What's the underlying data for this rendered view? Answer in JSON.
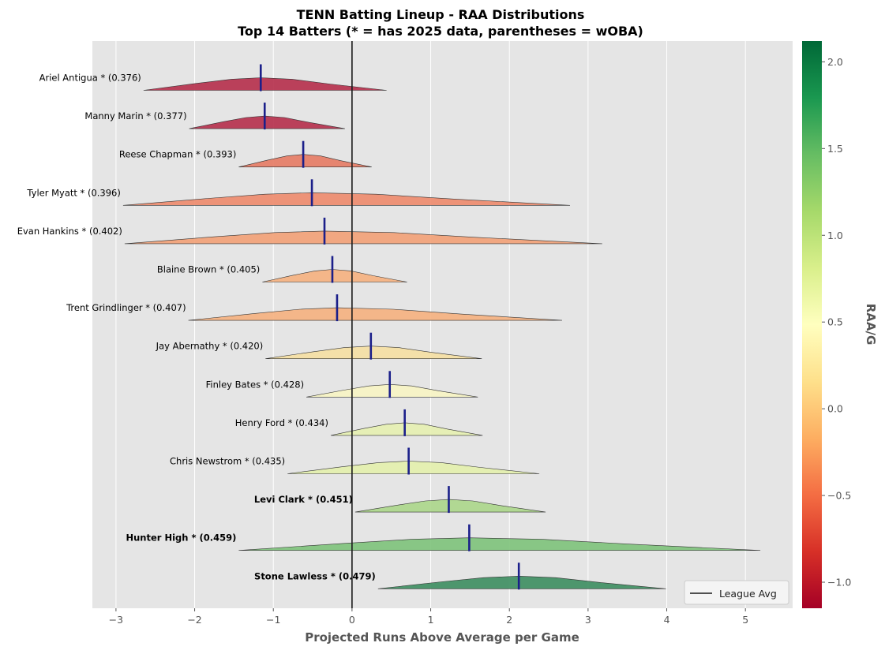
{
  "chart_data": {
    "type": "violin",
    "title": "TENN Batting Lineup - RAA Distributions",
    "subtitle": "Top 14 Batters (* = has 2025 data, parentheses = wOBA)",
    "xlabel": "Projected Runs Above Average per Game",
    "xlim": [
      -3.3,
      5.6
    ],
    "xticks": [
      -3,
      -2,
      -1,
      0,
      1,
      2,
      3,
      4,
      5
    ],
    "xtick_labels": [
      "−3",
      "−2",
      "−1",
      "0",
      "1",
      "2",
      "3",
      "4",
      "5"
    ],
    "grid": true,
    "reference_line": {
      "x": 0,
      "label": "League Avg"
    },
    "legend_position": "bottom-right",
    "colorbar": {
      "label": "RAA/G",
      "range": [
        -1.15,
        2.12
      ],
      "ticks": [
        -1.0,
        -0.5,
        0.0,
        0.5,
        1.0,
        1.5,
        2.0
      ],
      "tick_labels": [
        "−1.0",
        "−0.5",
        "0.0",
        "0.5",
        "1.0",
        "1.5",
        "2.0"
      ],
      "colormap": "RdYlGn",
      "stops": [
        "#a50026",
        "#d73027",
        "#f46d43",
        "#fdae61",
        "#fee08b",
        "#ffffbf",
        "#d9ef8b",
        "#a6d96a",
        "#66bd63",
        "#1a9850",
        "#006837"
      ]
    },
    "batters": [
      {
        "label": "Ariel Antigua * (0.376)",
        "name": "Ariel Antigua",
        "woba": 0.376,
        "median": -1.16,
        "min": -2.65,
        "max": 0.44,
        "color": "#b52d4a",
        "bold": false
      },
      {
        "label": "Manny Marin * (0.377)",
        "name": "Manny Marin",
        "woba": 0.377,
        "median": -1.11,
        "min": -2.07,
        "max": -0.09,
        "color": "#b52d4a",
        "bold": false
      },
      {
        "label": "Reese Chapman * (0.393)",
        "name": "Reese Chapman",
        "woba": 0.393,
        "median": -0.62,
        "min": -1.44,
        "max": 0.25,
        "color": "#e67a63",
        "bold": false
      },
      {
        "label": "Tyler Myatt * (0.396)",
        "name": "Tyler Myatt",
        "woba": 0.396,
        "median": -0.51,
        "min": -2.91,
        "max": 2.77,
        "color": "#ed8a6b",
        "bold": false
      },
      {
        "label": "Evan Hankins * (0.402)",
        "name": "Evan Hankins",
        "woba": 0.402,
        "median": -0.35,
        "min": -2.89,
        "max": 3.18,
        "color": "#f2a076",
        "bold": false
      },
      {
        "label": "Blaine Brown * (0.405)",
        "name": "Blaine Brown",
        "woba": 0.405,
        "median": -0.25,
        "min": -1.14,
        "max": 0.7,
        "color": "#f5b07e",
        "bold": false
      },
      {
        "label": "Trent Grindlinger * (0.407)",
        "name": "Trent Grindlinger",
        "woba": 0.407,
        "median": -0.19,
        "min": -2.08,
        "max": 2.67,
        "color": "#f5b07e",
        "bold": false
      },
      {
        "label": "Jay Abernathy * (0.420)",
        "name": "Jay Abernathy",
        "woba": 0.42,
        "median": 0.24,
        "min": -1.1,
        "max": 1.65,
        "color": "#f5dfa2",
        "bold": false
      },
      {
        "label": "Finley Bates * (0.428)",
        "name": "Finley Bates",
        "woba": 0.428,
        "median": 0.48,
        "min": -0.58,
        "max": 1.6,
        "color": "#f7f4c3",
        "bold": false
      },
      {
        "label": "Henry Ford * (0.434)",
        "name": "Henry Ford",
        "woba": 0.434,
        "median": 0.67,
        "min": -0.27,
        "max": 1.66,
        "color": "#e5f0b0",
        "bold": false
      },
      {
        "label": "Chris Newstrom * (0.435)",
        "name": "Chris Newstrom",
        "woba": 0.435,
        "median": 0.72,
        "min": -0.82,
        "max": 2.38,
        "color": "#e3efac",
        "bold": false
      },
      {
        "label": "Levi Clark * (0.451)",
        "name": "Levi Clark",
        "woba": 0.451,
        "median": 1.23,
        "min": 0.04,
        "max": 2.46,
        "color": "#abd68a",
        "bold": true
      },
      {
        "label": "Hunter High * (0.459)",
        "name": "Hunter High",
        "woba": 0.459,
        "median": 1.49,
        "min": -1.44,
        "max": 5.19,
        "color": "#7dc27a",
        "bold": true
      },
      {
        "label": "Stone Lawless * (0.479)",
        "name": "Stone Lawless",
        "woba": 0.479,
        "median": 2.12,
        "min": 0.33,
        "max": 3.99,
        "color": "#3c8d5f",
        "bold": true
      }
    ]
  }
}
